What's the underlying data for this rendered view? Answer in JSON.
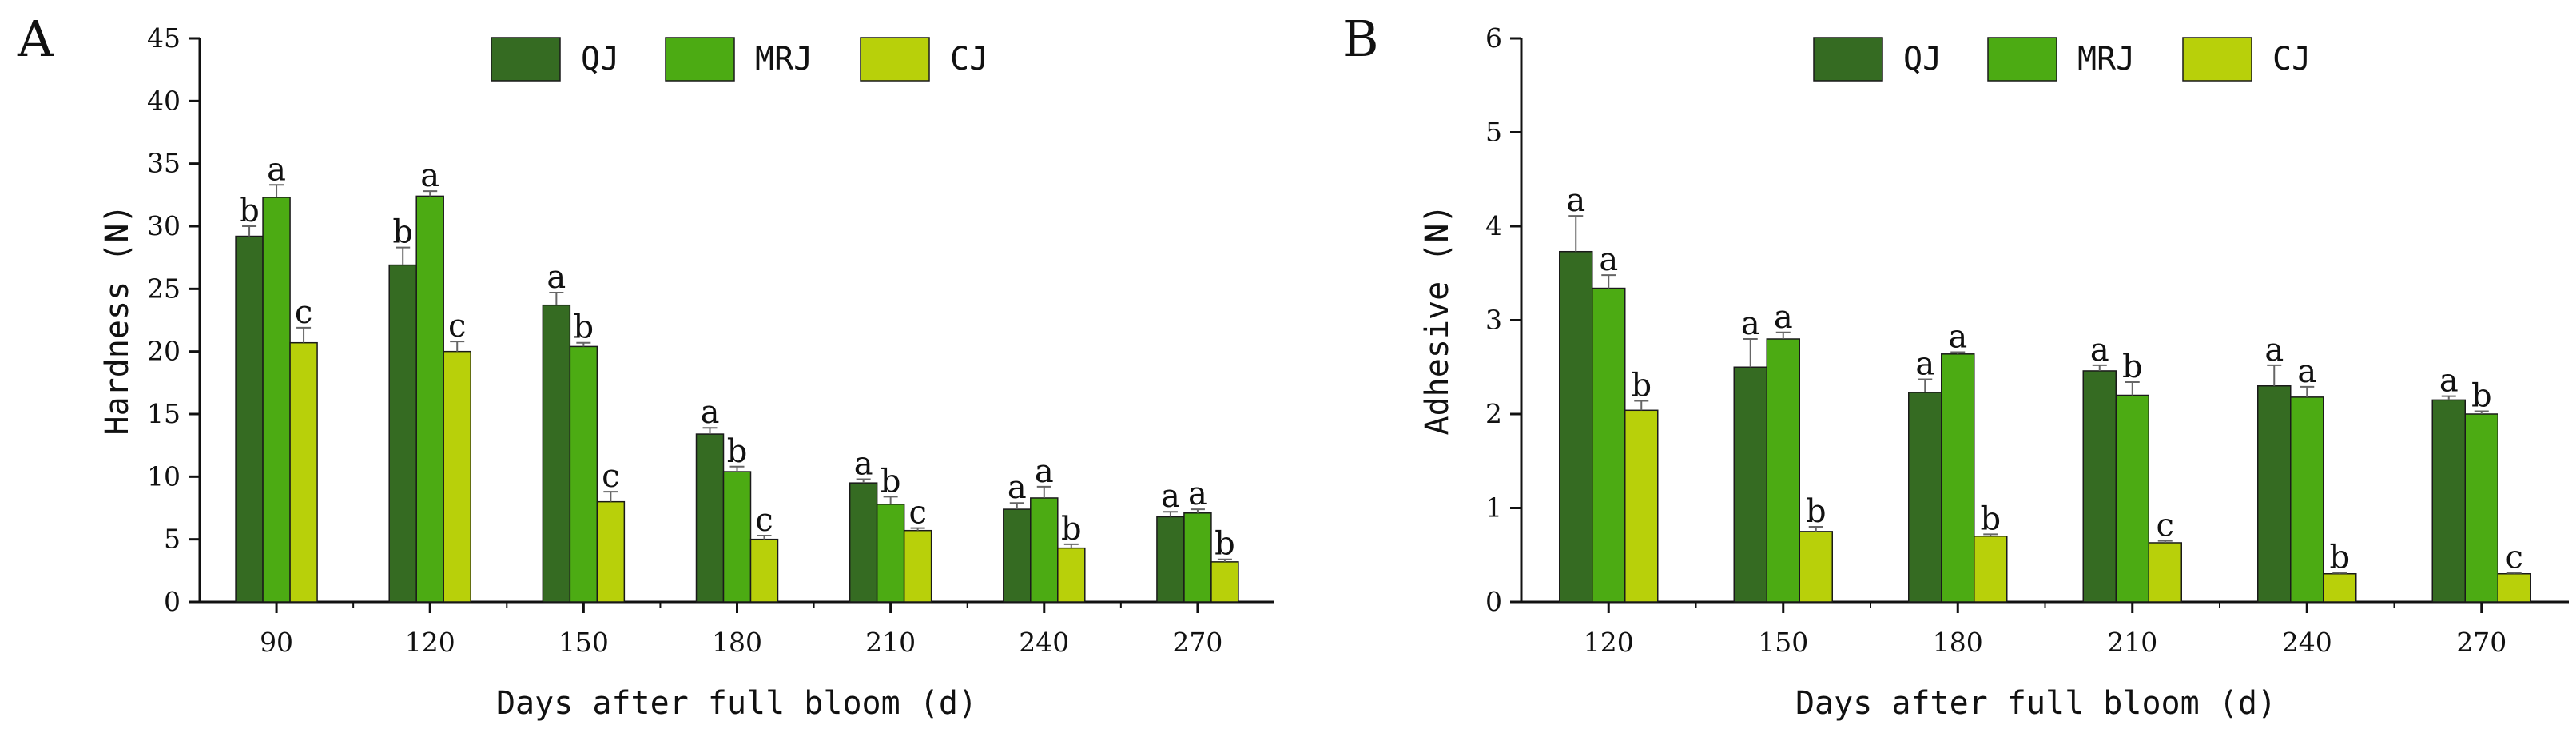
{
  "colors": {
    "QJ": "#356b22",
    "MRJ": "#4cab13",
    "CJ": "#b8d00a",
    "axis": "#111111",
    "error": "#666666"
  },
  "chart_data": [
    {
      "panel": "A",
      "type": "bar",
      "xlabel": "Days after full bloom (d)",
      "ylabel": "Hardness (N)",
      "ylim": [
        0,
        45
      ],
      "yticks": [
        "0",
        "5",
        "10",
        "15",
        "20",
        "25",
        "30",
        "35",
        "40",
        "45"
      ],
      "categories": [
        "90",
        "120",
        "150",
        "180",
        "210",
        "240",
        "270"
      ],
      "series": [
        {
          "name": "QJ",
          "values": [
            29.2,
            26.9,
            23.7,
            13.4,
            9.5,
            7.4,
            6.8
          ],
          "errors": [
            0.8,
            1.4,
            1.0,
            0.5,
            0.3,
            0.5,
            0.4
          ],
          "labels": [
            "b",
            "b",
            "a",
            "a",
            "a",
            "a",
            "a"
          ]
        },
        {
          "name": "MRJ",
          "values": [
            32.3,
            32.4,
            20.4,
            10.4,
            7.8,
            8.3,
            7.1
          ],
          "errors": [
            1.0,
            0.4,
            0.3,
            0.4,
            0.6,
            0.9,
            0.3
          ],
          "labels": [
            "a",
            "a",
            "b",
            "b",
            "b",
            "a",
            "a"
          ]
        },
        {
          "name": "CJ",
          "values": [
            20.7,
            20.0,
            8.0,
            5.0,
            5.7,
            4.3,
            3.2
          ],
          "errors": [
            1.2,
            0.8,
            0.8,
            0.3,
            0.2,
            0.3,
            0.2
          ],
          "labels": [
            "c",
            "c",
            "c",
            "c",
            "c",
            "b",
            "b"
          ]
        }
      ]
    },
    {
      "panel": "B",
      "type": "bar",
      "xlabel": "Days after full bloom (d)",
      "ylabel": "Adhesive (N)",
      "ylim": [
        0,
        6
      ],
      "yticks": [
        "0",
        "1",
        "2",
        "3",
        "4",
        "5",
        "6"
      ],
      "categories": [
        "120",
        "150",
        "180",
        "210",
        "240",
        "270"
      ],
      "series": [
        {
          "name": "QJ",
          "values": [
            3.73,
            2.5,
            2.23,
            2.46,
            2.3,
            2.15
          ],
          "errors": [
            0.38,
            0.3,
            0.14,
            0.06,
            0.22,
            0.04
          ],
          "labels": [
            "a",
            "a",
            "a",
            "a",
            "a",
            "a"
          ]
        },
        {
          "name": "MRJ",
          "values": [
            3.34,
            2.8,
            2.64,
            2.2,
            2.18,
            2.0
          ],
          "errors": [
            0.14,
            0.07,
            0.02,
            0.14,
            0.11,
            0.03
          ],
          "labels": [
            "a",
            "a",
            "a",
            "b",
            "a",
            "b"
          ]
        },
        {
          "name": "CJ",
          "values": [
            2.04,
            0.75,
            0.7,
            0.63,
            0.3,
            0.3
          ],
          "errors": [
            0.1,
            0.05,
            0.02,
            0.02,
            0.01,
            0.01
          ],
          "labels": [
            "b",
            "b",
            "b",
            "c",
            "b",
            "c"
          ]
        }
      ]
    }
  ]
}
